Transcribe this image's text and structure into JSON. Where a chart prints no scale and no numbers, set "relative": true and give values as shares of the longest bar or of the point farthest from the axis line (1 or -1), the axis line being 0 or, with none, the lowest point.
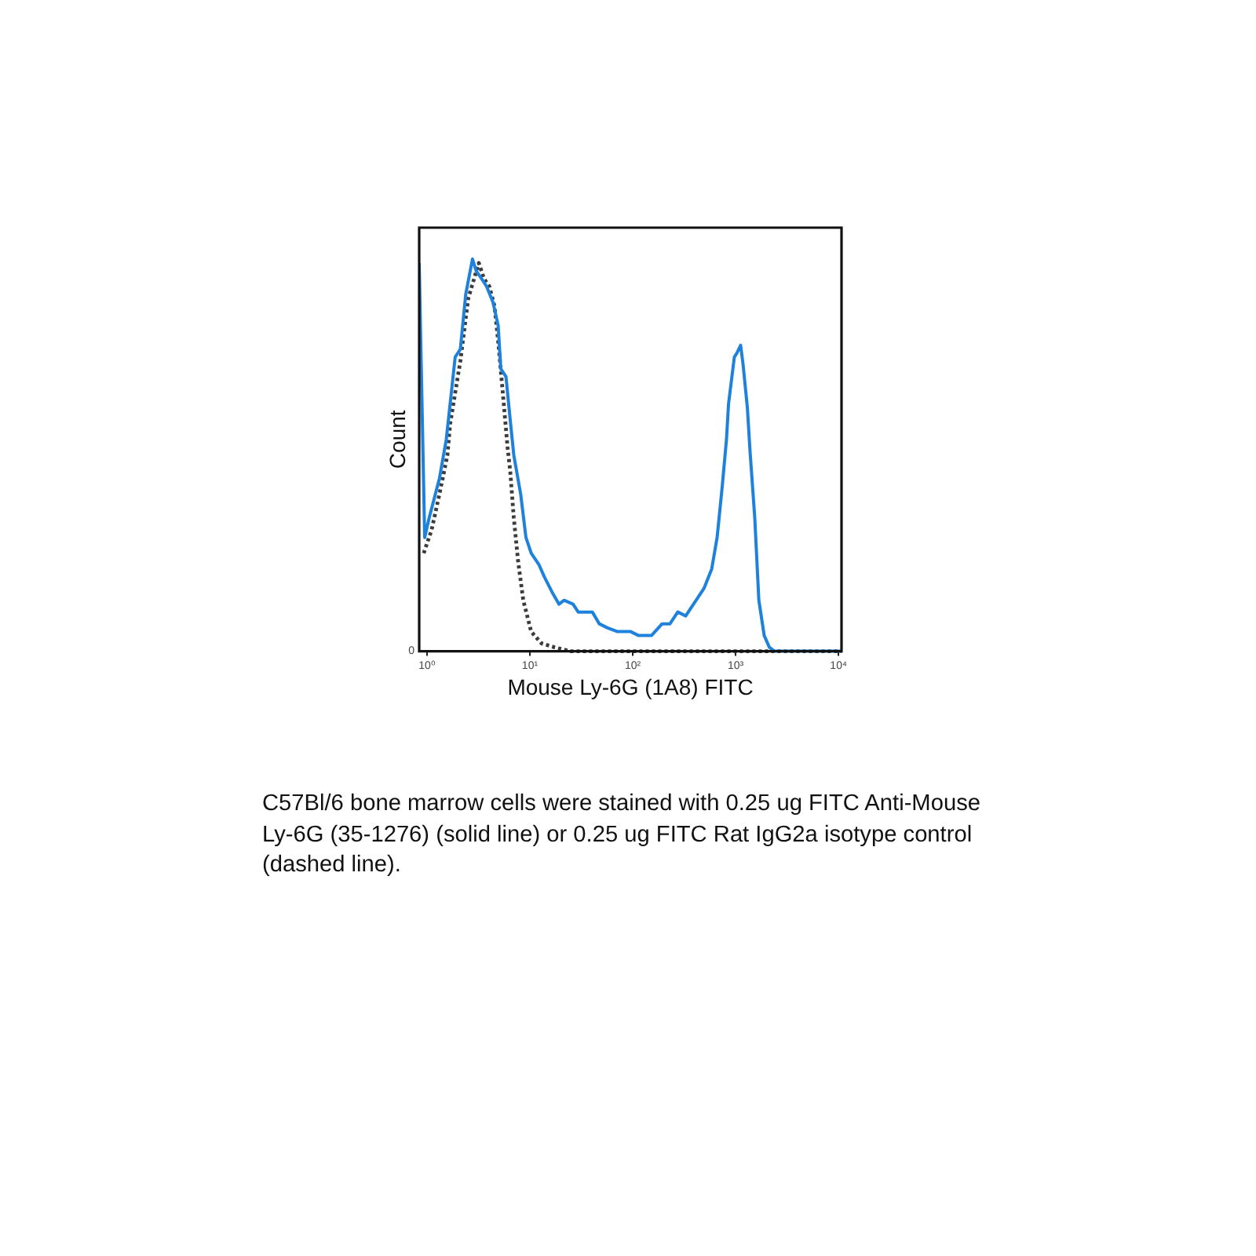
{
  "chart_data": {
    "type": "line",
    "xlabel": "Mouse Ly-6G (1A8) FITC",
    "ylabel": "Count",
    "relative": true,
    "log": "x",
    "xlim": [
      0.84,
      10700
    ],
    "xticks": [
      {
        "value": 1,
        "label": "10⁰"
      },
      {
        "value": 10,
        "label": "10¹"
      },
      {
        "value": 100,
        "label": "10²"
      },
      {
        "value": 1000,
        "label": "10³"
      },
      {
        "value": 10000,
        "label": "10⁴"
      }
    ],
    "annotations": [
      "0",
      "C57Bl/6 bone marrow cells were stained with 0.25 ug FITC Anti-Mouse Ly-6G (35-1276) (solid line) or 0.25 ug FITC Rat IgG2a isotype control (dashed line)."
    ],
    "series": [
      {
        "color": "#1e82dc",
        "line_style": "solid",
        "x": [
          0.84,
          0.95,
          1.05,
          1.32,
          1.54,
          1.88,
          2.11,
          2.38,
          2.77,
          3.0,
          3.39,
          3.8,
          4.38,
          4.92,
          5.22,
          5.86,
          6.44,
          6.98,
          8.15,
          9.16,
          10.3,
          12.3,
          13.8,
          16.5,
          19.2,
          21.5,
          26.3,
          29.5,
          35.2,
          40.5,
          47.3,
          56.4,
          71.1,
          95.5,
          114,
          152,
          193,
          230,
          274,
          327,
          413,
          492,
          586,
          661,
          741,
          815,
          853,
          972,
          1028,
          1119,
          1183,
          1302,
          1381,
          1535,
          1682,
          1896,
          2129,
          2392,
          10700
        ],
        "values": [
          0.99,
          0.29,
          0.34,
          0.44,
          0.54,
          0.75,
          0.77,
          0.91,
          1,
          0.97,
          0.95,
          0.93,
          0.89,
          0.83,
          0.72,
          0.7,
          0.59,
          0.5,
          0.4,
          0.29,
          0.25,
          0.22,
          0.19,
          0.15,
          0.12,
          0.13,
          0.12,
          0.1,
          0.1,
          0.1,
          0.07,
          0.06,
          0.05,
          0.05,
          0.04,
          0.04,
          0.07,
          0.07,
          0.1,
          0.09,
          0.13,
          0.16,
          0.21,
          0.29,
          0.42,
          0.54,
          0.63,
          0.75,
          0.76,
          0.78,
          0.73,
          0.62,
          0.51,
          0.34,
          0.13,
          0.04,
          0.01,
          0,
          0
        ]
      },
      {
        "color": "#3c3c3c",
        "line_style": "dotted",
        "x": [
          0.93,
          1.11,
          1.32,
          1.58,
          1.68,
          2.11,
          2.52,
          3.19,
          3.58,
          4.04,
          4.53,
          4.92,
          5.41,
          6.07,
          6.44,
          6.98,
          7.68,
          8.63,
          10.3,
          13.0,
          17.4,
          24.8,
          10700
        ],
        "values": [
          0.25,
          0.31,
          0.4,
          0.5,
          0.58,
          0.74,
          0.9,
          0.99,
          0.95,
          0.93,
          0.88,
          0.79,
          0.67,
          0.52,
          0.46,
          0.34,
          0.23,
          0.13,
          0.05,
          0.02,
          0.01,
          0,
          0
        ]
      }
    ]
  }
}
